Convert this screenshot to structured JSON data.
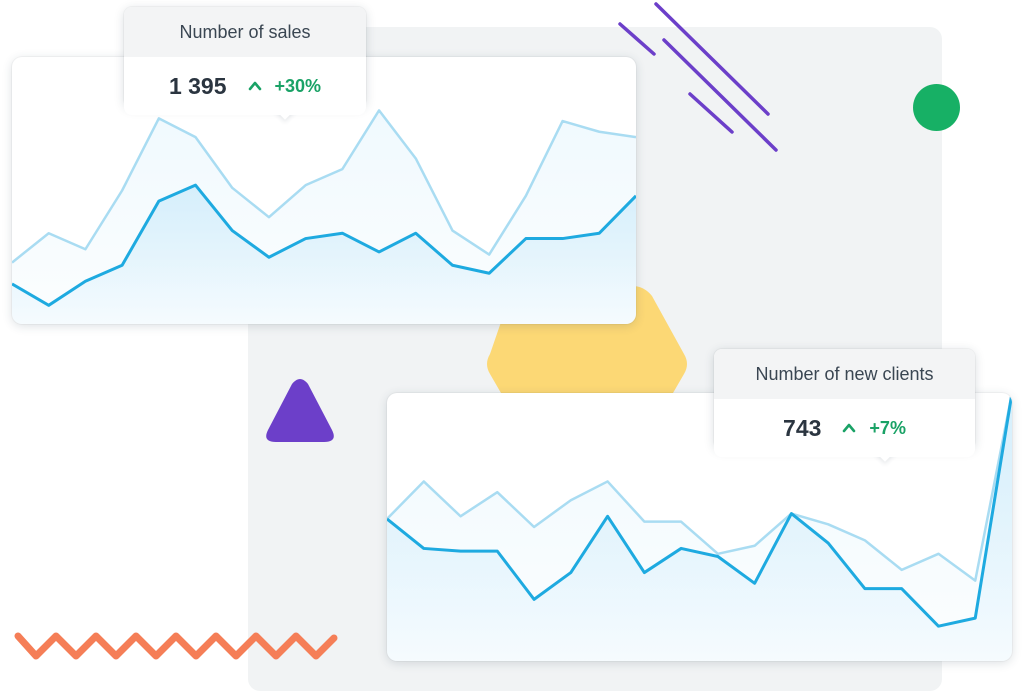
{
  "colors": {
    "backdrop": "#f1f3f4",
    "line_primary": "#1eaae0",
    "line_secondary": "#a9dcf2",
    "area_fill": "#d4eefb",
    "trend_positive": "#1aa266",
    "deco_purple": "#6c3fc9",
    "deco_green": "#17b065",
    "deco_yellow": "#fcd875",
    "deco_orange": "#f57e57"
  },
  "sales_tooltip": {
    "title": "Number of sales",
    "value": "1 395",
    "trend": "+30%",
    "trend_icon": "chevron-up-icon"
  },
  "clients_tooltip": {
    "title": "Number of new clients",
    "value": "743",
    "trend": "+7%",
    "trend_icon": "chevron-up-icon"
  },
  "chart_data": [
    {
      "type": "area",
      "grid": false,
      "ylim": [
        0,
        100
      ],
      "x": [
        0,
        1,
        2,
        3,
        4,
        5,
        6,
        7,
        8,
        9,
        10,
        11,
        12,
        13,
        14,
        15,
        16,
        17
      ],
      "series": [
        {
          "values": [
            23,
            34,
            28,
            50,
            77,
            70,
            51,
            40,
            52,
            58,
            80,
            62,
            35,
            26,
            48,
            76,
            72,
            70
          ]
        },
        {
          "values": [
            15,
            7,
            16,
            22,
            46,
            52,
            35,
            25,
            32,
            34,
            27,
            34,
            22,
            19,
            32,
            32,
            34,
            48
          ]
        }
      ]
    },
    {
      "type": "area",
      "grid": false,
      "ylim": [
        0,
        100
      ],
      "x": [
        0,
        1,
        2,
        3,
        4,
        5,
        6,
        7,
        8,
        9,
        10,
        11,
        12,
        13,
        14,
        15,
        16,
        17
      ],
      "series": [
        {
          "values": [
            53,
            67,
            54,
            63,
            50,
            60,
            67,
            52,
            52,
            40,
            43,
            55,
            51,
            45,
            34,
            40,
            30,
            100
          ]
        },
        {
          "values": [
            53,
            42,
            41,
            41,
            23,
            33,
            54,
            33,
            42,
            39,
            29,
            55,
            44,
            27,
            27,
            13,
            16,
            100
          ]
        }
      ]
    }
  ]
}
